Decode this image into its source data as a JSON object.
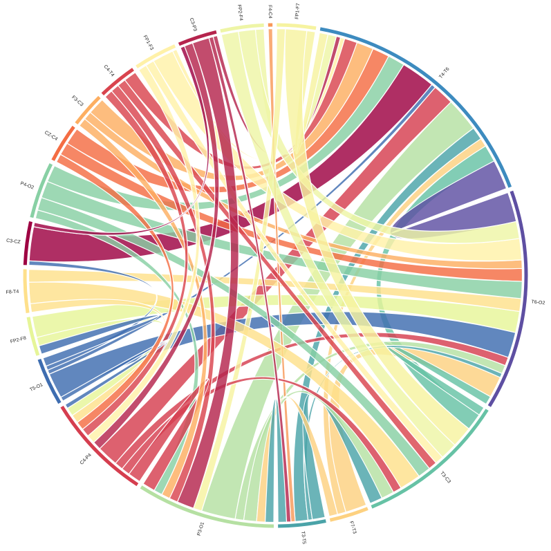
{
  "chart_data": {
    "type": "chord",
    "nodes": [
      {
        "name": "FP1-F7",
        "color": "#f6f3a0"
      },
      {
        "name": "T4-T6",
        "color": "#3d8bbf"
      },
      {
        "name": "T6-O2",
        "color": "#5e4fa2"
      },
      {
        "name": "T3-C3",
        "color": "#66c2a5"
      },
      {
        "name": "F7-T3",
        "color": "#fdd180"
      },
      {
        "name": "T3-T5",
        "color": "#4aa3a8"
      },
      {
        "name": "P3-O1",
        "color": "#b5e0a2"
      },
      {
        "name": "C4-P4",
        "color": "#d53e4f"
      },
      {
        "name": "T5-O1",
        "color": "#3e6db0"
      },
      {
        "name": "FP2-F8",
        "color": "#e6f598"
      },
      {
        "name": "F8-T4",
        "color": "#fee08b"
      },
      {
        "name": "C3-CZ",
        "color": "#9e0142"
      },
      {
        "name": "P4-O2",
        "color": "#88d0a4"
      },
      {
        "name": "CZ-C4",
        "color": "#f46d43"
      },
      {
        "name": "F3-C3",
        "color": "#fdae61"
      },
      {
        "name": "C4-T4",
        "color": "#d9444e"
      },
      {
        "name": "FP1-F3",
        "color": "#fff1a8"
      },
      {
        "name": "C3-P3",
        "color": "#b5244d"
      },
      {
        "name": "FP2-F4",
        "color": "#eef5a6"
      },
      {
        "name": "F4-C4",
        "color": "#f89858"
      }
    ],
    "links": [
      {
        "source": "C3-CZ",
        "target": "T4-T6",
        "value": 8
      },
      {
        "source": "C4-P4",
        "target": "T4-T6",
        "value": 5
      },
      {
        "source": "P3-O1",
        "target": "T4-T6",
        "value": 8
      },
      {
        "source": "T3-C3",
        "target": "T4-T6",
        "value": 4
      },
      {
        "source": "F7-T3",
        "target": "T4-T6",
        "value": 2
      },
      {
        "source": "T6-O2",
        "target": "T4-T6",
        "value": 7
      },
      {
        "source": "F3-C3",
        "target": "T4-T6",
        "value": 4
      },
      {
        "source": "CZ-C4",
        "target": "T4-T6",
        "value": 4
      },
      {
        "source": "C4-T4",
        "target": "T4-T6",
        "value": 3
      },
      {
        "source": "T5-O1",
        "target": "T4-T6",
        "value": 1
      },
      {
        "source": "FP1-F3",
        "target": "T4-T6",
        "value": 1
      },
      {
        "source": "C3-P3",
        "target": "T4-T6",
        "value": 1
      },
      {
        "source": "FP2-F4",
        "target": "T4-T6",
        "value": 2
      },
      {
        "source": "FP1-F7",
        "target": "T4-T6",
        "value": 2
      },
      {
        "source": "T3-T5",
        "target": "T4-T6",
        "value": 3
      },
      {
        "source": "P4-O2",
        "target": "T4-T6",
        "value": 4
      },
      {
        "source": "FP2-F8",
        "target": "T6-O2",
        "value": 5
      },
      {
        "source": "F8-T4",
        "target": "T6-O2",
        "value": 3
      },
      {
        "source": "CZ-C4",
        "target": "T6-O2",
        "value": 3
      },
      {
        "source": "F3-C3",
        "target": "T6-O2",
        "value": 2
      },
      {
        "source": "T5-O1",
        "target": "T6-O2",
        "value": 6
      },
      {
        "source": "C4-P4",
        "target": "T6-O2",
        "value": 2
      },
      {
        "source": "FP1-F3",
        "target": "T6-O2",
        "value": 5
      },
      {
        "source": "P4-O2",
        "target": "T6-O2",
        "value": 4
      },
      {
        "source": "F7-T3",
        "target": "T6-O2",
        "value": 5
      },
      {
        "source": "FP2-F4",
        "target": "T6-O2",
        "value": 4
      },
      {
        "source": "T3-C3",
        "target": "T6-O2",
        "value": 2
      },
      {
        "source": "P3-O1",
        "target": "T6-O2",
        "value": 2
      },
      {
        "source": "T3-T5",
        "target": "T6-O2",
        "value": 1
      },
      {
        "source": "FP1-F7",
        "target": "T3-C3",
        "value": 5
      },
      {
        "source": "F4-C4",
        "target": "T3-T5",
        "value": 1
      },
      {
        "source": "FP1-F7",
        "target": "P3-O1",
        "value": 2
      },
      {
        "source": "P4-O2",
        "target": "T3-C3",
        "value": 3
      },
      {
        "source": "F8-T4",
        "target": "T3-C3",
        "value": 5
      },
      {
        "source": "C4-T4",
        "target": "T3-C3",
        "value": 2
      },
      {
        "source": "FP2-F4",
        "target": "T3-C3",
        "value": 4
      },
      {
        "source": "T3-T5",
        "target": "T3-C3",
        "value": 3
      },
      {
        "source": "P3-O1",
        "target": "T3-C3",
        "value": 3
      },
      {
        "source": "C4-P4",
        "target": "T3-C3",
        "value": 2
      },
      {
        "source": "FP1-F3",
        "target": "T3-C3",
        "value": 2
      },
      {
        "source": "F7-T3",
        "target": "P3-O1",
        "value": 2
      },
      {
        "source": "T3-T5",
        "target": "P3-O1",
        "value": 2
      },
      {
        "source": "C3-P3",
        "target": "P3-O1",
        "value": 4
      },
      {
        "source": "C4-T4",
        "target": "P3-O1",
        "value": 2
      },
      {
        "source": "P4-O2",
        "target": "P3-O1",
        "value": 2
      },
      {
        "source": "C4-P4",
        "target": "P3-O1",
        "value": 3
      },
      {
        "source": "F3-C3",
        "target": "P3-O1",
        "value": 2
      },
      {
        "source": "F8-T4",
        "target": "C4-P4",
        "value": 2
      },
      {
        "source": "FP2-F8",
        "target": "C4-P4",
        "value": 2
      },
      {
        "source": "C3-P3",
        "target": "C4-P4",
        "value": 2
      },
      {
        "source": "C4-T4",
        "target": "C4-P4",
        "value": 2
      },
      {
        "source": "T5-O1",
        "target": "C4-P4",
        "value": 1
      },
      {
        "source": "CZ-C4",
        "target": "C4-P4",
        "value": 2
      },
      {
        "source": "FP1-F3",
        "target": "C4-P4",
        "value": 2
      },
      {
        "source": "T5-O1",
        "target": "C3-CZ",
        "value": 1
      },
      {
        "source": "T5-O1",
        "target": "FP2-F8",
        "value": 2
      },
      {
        "source": "C3-CZ",
        "target": "C3-P3",
        "value": 1
      },
      {
        "source": "C3-P3",
        "target": "T3-T5",
        "value": 1
      }
    ]
  }
}
